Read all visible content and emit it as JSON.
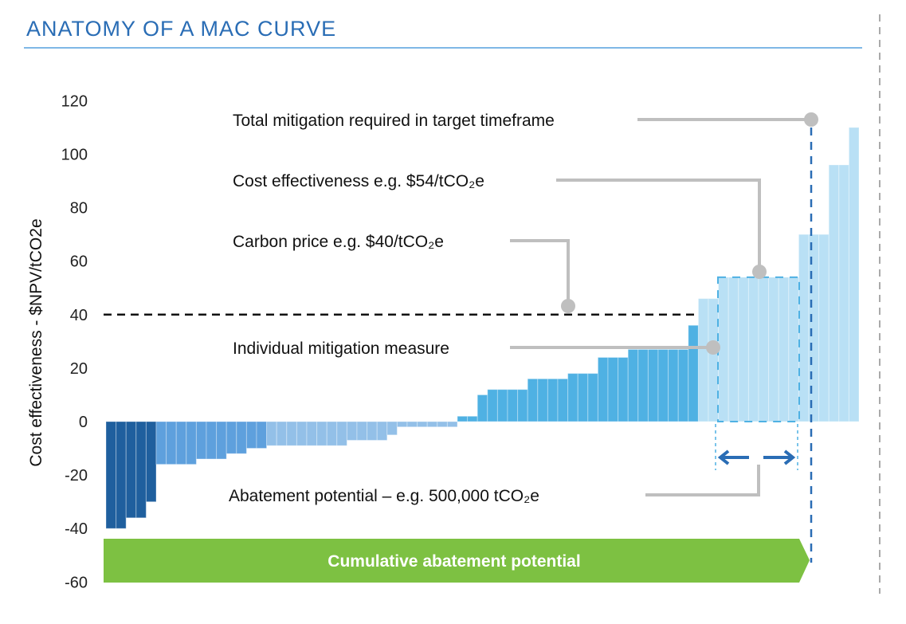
{
  "title": "ANATOMY OF A MAC CURVE",
  "colors": {
    "title": "#2a6db5",
    "rule": "#7fb8e6",
    "dark": "#1f5f9e",
    "medium": "#5ea0dd",
    "light": "#93c0e8",
    "positive": "#4fb1e3",
    "pale": "#b9e0f5",
    "green": "#7dc142",
    "leader": "#bfbfbf"
  },
  "chart_data": {
    "type": "bar",
    "title": "ANATOMY OF A MAC CURVE",
    "xlabel": "Cumulative abatement potential",
    "ylabel": "Cost effectiveness - $NPV/tCO2e",
    "ylim": [
      -60,
      120
    ],
    "yticks": [
      "120",
      "100",
      "80",
      "60",
      "40",
      "20",
      "0",
      "-20",
      "-40",
      "-60"
    ],
    "ytick_values": [
      120,
      100,
      80,
      60,
      40,
      20,
      0,
      -20,
      -40,
      -60
    ],
    "carbon_price": 40,
    "bars": [
      {
        "width": 2,
        "value": -40,
        "group": "dark"
      },
      {
        "width": 2,
        "value": -36,
        "group": "dark"
      },
      {
        "width": 1,
        "value": -30,
        "group": "dark"
      },
      {
        "width": 4,
        "value": -16,
        "group": "medium"
      },
      {
        "width": 3,
        "value": -14,
        "group": "medium"
      },
      {
        "width": 2,
        "value": -12,
        "group": "medium"
      },
      {
        "width": 2,
        "value": -10,
        "group": "medium"
      },
      {
        "width": 8,
        "value": -9,
        "group": "light"
      },
      {
        "width": 4,
        "value": -7,
        "group": "light"
      },
      {
        "width": 1,
        "value": -5,
        "group": "light"
      },
      {
        "width": 6,
        "value": -2,
        "group": "light"
      },
      {
        "width": 2,
        "value": 2,
        "group": "positive"
      },
      {
        "width": 1,
        "value": 10,
        "group": "positive"
      },
      {
        "width": 4,
        "value": 12,
        "group": "positive"
      },
      {
        "width": 4,
        "value": 16,
        "group": "positive"
      },
      {
        "width": 3,
        "value": 18,
        "group": "positive"
      },
      {
        "width": 3,
        "value": 24,
        "group": "positive"
      },
      {
        "width": 6,
        "value": 27,
        "group": "positive"
      },
      {
        "width": 1,
        "value": 36,
        "group": "positive"
      },
      {
        "width": 2,
        "value": 46,
        "group": "pale"
      },
      {
        "width": 8,
        "value": 54,
        "group": "pale"
      },
      {
        "width": 3,
        "value": 70,
        "group": "pale"
      },
      {
        "width": 2,
        "value": 96,
        "group": "pale"
      },
      {
        "width": 1,
        "value": 110,
        "group": "pale"
      }
    ],
    "annotations": {
      "total": "Total mitigation required in target timeframe",
      "cost": "Cost effectiveness e.g. $54/tCO₂e",
      "carbon": "Carbon price e.g. $40/tCO₂e",
      "measure": "Individual mitigation measure",
      "abatement": "Abatement potential – e.g. 500,000 tCO₂e"
    }
  }
}
